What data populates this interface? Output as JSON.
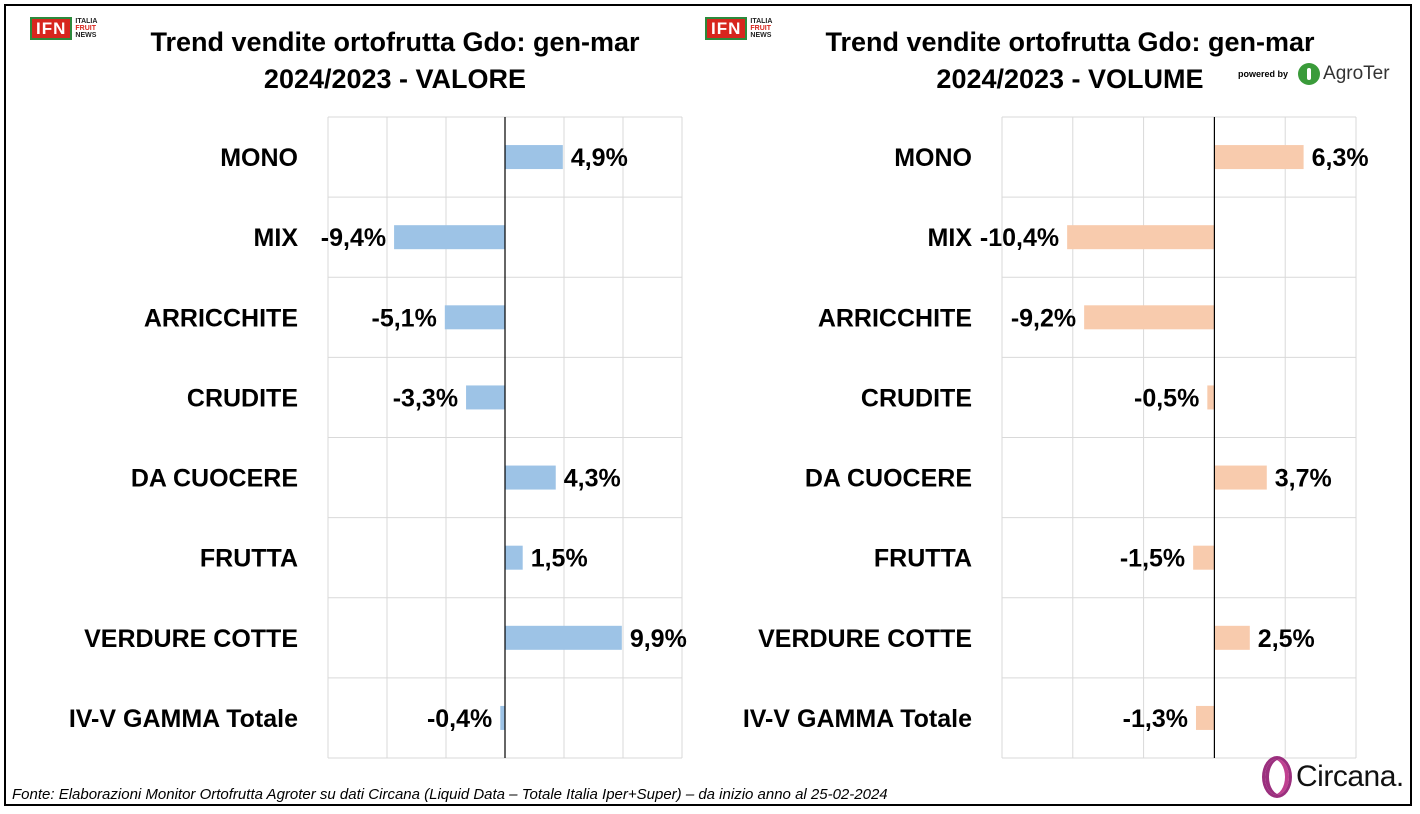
{
  "logos": {
    "ifn_text": "IFN",
    "ifn_sub": [
      "ITALIA",
      "FRUIT",
      "NEWS"
    ],
    "powered_by": "powered by",
    "agroter": "AgroTer",
    "circana": "Circana."
  },
  "footer": "Fonte: Elaborazioni Monitor Ortofrutta Agroter su dati Circana (Liquid Data – Totale Italia Iper+Super) –  da inizio anno al 25-02-2024",
  "colors": {
    "valore_bar": "#9dc3e6",
    "volume_bar": "#f8cbad",
    "grid": "#d9d9d9"
  },
  "chart_data": [
    {
      "type": "bar",
      "orientation": "horizontal",
      "title_lines": [
        "Trend vendite ortofrutta Gdo: gen-mar",
        "2024/2023 - VALORE"
      ],
      "categories": [
        "MONO",
        "MIX",
        "ARRICCHITE",
        "CRUDITE",
        "DA CUOCERE",
        "FRUTTA",
        "VERDURE COTTE",
        "IV-V GAMMA Totale"
      ],
      "values": [
        4.9,
        -9.4,
        -5.1,
        -3.3,
        4.3,
        1.5,
        9.9,
        -0.4
      ],
      "labels": [
        "4,9%",
        "-9,4%",
        "-5,1%",
        "-3,3%",
        "4,3%",
        "1,5%",
        "9,9%",
        "-0,4%"
      ],
      "xlim": [
        -15,
        15
      ],
      "grid": true,
      "color": "#9dc3e6"
    },
    {
      "type": "bar",
      "orientation": "horizontal",
      "title_lines": [
        "Trend vendite ortofrutta Gdo: gen-mar",
        "2024/2023 - VOLUME"
      ],
      "categories": [
        "MONO",
        "MIX",
        "ARRICCHITE",
        "CRUDITE",
        "DA CUOCERE",
        "FRUTTA",
        "VERDURE COTTE",
        "IV-V GAMMA Totale"
      ],
      "values": [
        6.3,
        -10.4,
        -9.2,
        -0.5,
        3.7,
        -1.5,
        2.5,
        -1.3
      ],
      "labels": [
        "6,3%",
        "-10,4%",
        "-9,2%",
        "-0,5%",
        "3,7%",
        "-1,5%",
        "2,5%",
        "-1,3%"
      ],
      "xlim": [
        -15,
        10
      ],
      "grid": true,
      "color": "#f8cbad"
    }
  ]
}
